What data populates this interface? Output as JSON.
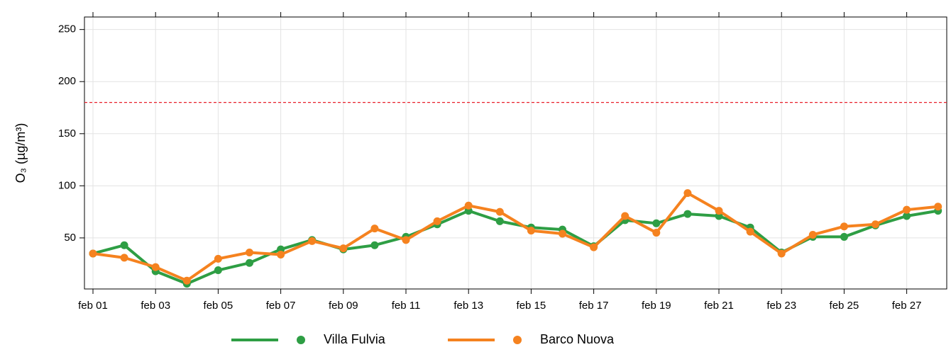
{
  "chart_data": {
    "type": "line",
    "y_label": "O₃ (µg/m³)",
    "categories": [
      "feb 01",
      null,
      "feb 03",
      null,
      "feb 05",
      null,
      "feb 07",
      null,
      "feb 09",
      null,
      "feb 11",
      null,
      "feb 13",
      null,
      "feb 15",
      null,
      "feb 17",
      null,
      "feb 19",
      null,
      "feb 21",
      null,
      "feb 23",
      null,
      "feb 25",
      null,
      "feb 27",
      null
    ],
    "series": [
      {
        "name": "Villa Fulvia",
        "color": "#2e9e44",
        "values": [
          35,
          43,
          18,
          6,
          19,
          26,
          39,
          48,
          39,
          43,
          51,
          63,
          76,
          66,
          60,
          58,
          42,
          67,
          64,
          73,
          71,
          60,
          36,
          51,
          51,
          62,
          71,
          76
        ]
      },
      {
        "name": "Barco Nuova",
        "color": "#f5821f",
        "values": [
          35,
          31,
          22,
          9,
          30,
          36,
          34,
          47,
          40,
          59,
          48,
          66,
          81,
          75,
          57,
          54,
          41,
          71,
          55,
          93,
          76,
          56,
          35,
          53,
          61,
          63,
          77,
          80
        ]
      }
    ],
    "ylim": [
      1,
      262
    ],
    "yticks": [
      50,
      100,
      150,
      200,
      250
    ],
    "grid": true,
    "hlines": [
      {
        "value": 180,
        "color": "#e8202a",
        "style": "dashed"
      }
    ],
    "legend": "bottom"
  }
}
